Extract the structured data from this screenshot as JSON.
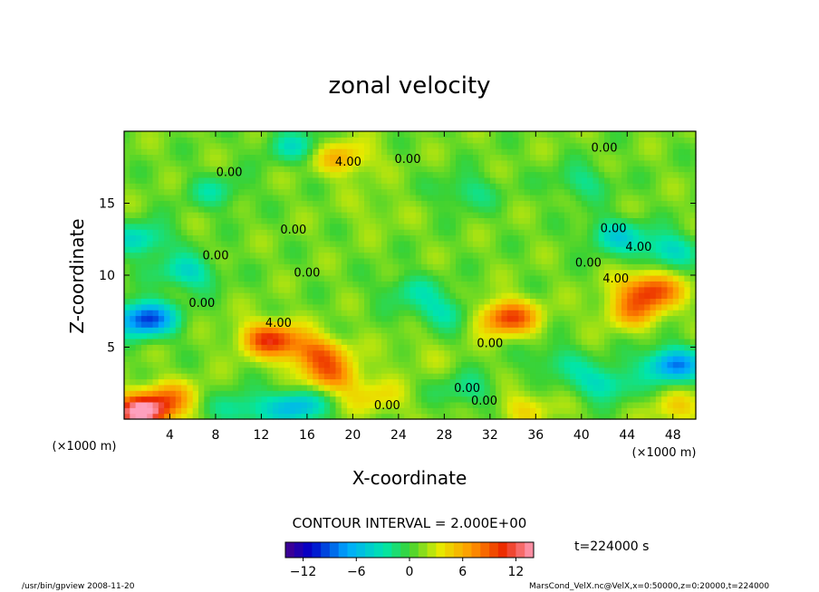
{
  "chart_data": {
    "type": "heatmap",
    "title": "zonal velocity",
    "xlabel": "X-coordinate",
    "ylabel": "Z-coordinate",
    "x_unit": "(×1000 m)",
    "y_unit": "(×1000 m)",
    "xlim": [
      0,
      50
    ],
    "ylim": [
      0,
      20
    ],
    "x_ticks": [
      "4",
      "8",
      "12",
      "16",
      "20",
      "24",
      "28",
      "32",
      "36",
      "40",
      "44",
      "48"
    ],
    "y_ticks": [
      "5",
      "10",
      "15"
    ],
    "contour_interval_text": "CONTOUR INTERVAL = 2.000E+00",
    "contour_interval": 2.0,
    "colorbar": {
      "min": -14,
      "max": 14,
      "ticks": [
        "−12",
        "−6",
        "0",
        "6",
        "12"
      ]
    },
    "time_label": "t=224000 s",
    "contour_labels": [
      {
        "text": "4.00",
        "x": 19.6,
        "z": 17.6
      },
      {
        "text": "0.00",
        "x": 24.8,
        "z": 17.8
      },
      {
        "text": "0.00",
        "x": 42.0,
        "z": 18.6
      },
      {
        "text": "0.00",
        "x": 9.2,
        "z": 16.9
      },
      {
        "text": "0.00",
        "x": 14.8,
        "z": 12.9
      },
      {
        "text": "0.00",
        "x": 42.8,
        "z": 13.0
      },
      {
        "text": "4.00",
        "x": 45.0,
        "z": 11.7
      },
      {
        "text": "0.00",
        "x": 8.0,
        "z": 11.1
      },
      {
        "text": "0.00",
        "x": 40.6,
        "z": 10.6
      },
      {
        "text": "0.00",
        "x": 16.0,
        "z": 9.9
      },
      {
        "text": "4.00",
        "x": 43.0,
        "z": 9.5
      },
      {
        "text": "0.00",
        "x": 6.8,
        "z": 7.8
      },
      {
        "text": "4.00",
        "x": 13.5,
        "z": 6.4
      },
      {
        "text": "0.00",
        "x": 32.0,
        "z": 5.0
      },
      {
        "text": "0.00",
        "x": 30.0,
        "z": 1.9
      },
      {
        "text": "0.00",
        "x": 23.0,
        "z": 0.7
      },
      {
        "text": "0.00",
        "x": 31.5,
        "z": 1.0
      }
    ],
    "features": [
      {
        "x": 1.8,
        "z": 7.0,
        "value": -10
      },
      {
        "x": 5.5,
        "z": 10.2,
        "value": -4
      },
      {
        "x": 12.8,
        "z": 5.6,
        "value": 10
      },
      {
        "x": 16.8,
        "z": 4.6,
        "value": 8
      },
      {
        "x": 18.2,
        "z": 3.0,
        "value": 7
      },
      {
        "x": 15.0,
        "z": 0.9,
        "value": -6
      },
      {
        "x": 10.0,
        "z": 0.7,
        "value": -3
      },
      {
        "x": 1.5,
        "z": 0.5,
        "value": 14
      },
      {
        "x": 4.0,
        "z": 1.5,
        "value": 6
      },
      {
        "x": 33.5,
        "z": 7.1,
        "value": 10
      },
      {
        "x": 28.0,
        "z": 7.5,
        "value": -3
      },
      {
        "x": 25.0,
        "z": 9.0,
        "value": -2
      },
      {
        "x": 46.0,
        "z": 9.0,
        "value": 10
      },
      {
        "x": 44.5,
        "z": 7.5,
        "value": 6
      },
      {
        "x": 48.0,
        "z": 3.8,
        "value": -8
      },
      {
        "x": 42.0,
        "z": 2.5,
        "value": -4
      },
      {
        "x": 48.5,
        "z": 0.8,
        "value": 4
      },
      {
        "x": 43.0,
        "z": 12.8,
        "value": -4
      },
      {
        "x": 47.5,
        "z": 11.8,
        "value": -4
      },
      {
        "x": 1.5,
        "z": 12.5,
        "value": -4
      },
      {
        "x": 19.0,
        "z": 18.2,
        "value": 6
      },
      {
        "x": 15.0,
        "z": 19.0,
        "value": -3
      },
      {
        "x": 8.0,
        "z": 15.8,
        "value": -2
      },
      {
        "x": 40.0,
        "z": 16.5,
        "value": -2
      },
      {
        "x": 30.0,
        "z": 15.8,
        "value": -2
      },
      {
        "x": 22.0,
        "z": 14.5,
        "value": 2
      },
      {
        "x": 30.0,
        "z": 2.0,
        "value": -2
      },
      {
        "x": 22.0,
        "z": 1.5,
        "value": 4
      },
      {
        "x": 35.0,
        "z": 0.8,
        "value": 4
      },
      {
        "x": 38.0,
        "z": 4.0,
        "value": -2
      },
      {
        "x": 26.0,
        "z": 4.5,
        "value": 2
      }
    ]
  },
  "footer": {
    "left": "/usr/bin/gpview   2008-11-20",
    "right": "MarsCond_VelX.nc@VelX,x=0:50000,z=0:20000,t=224000"
  }
}
